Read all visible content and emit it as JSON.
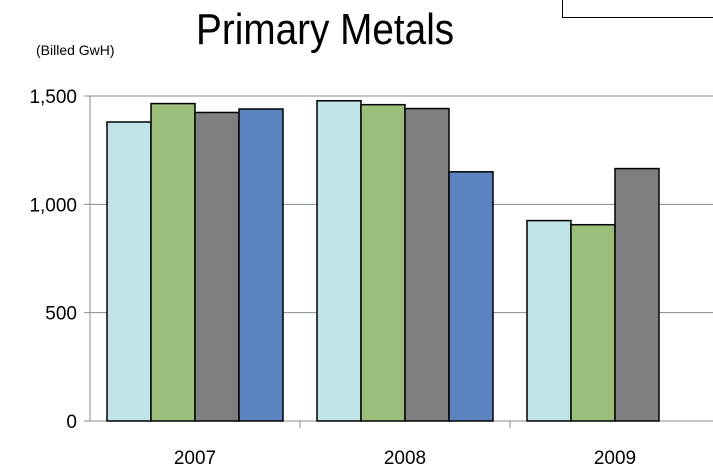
{
  "chart_data": {
    "type": "bar",
    "title": "Primary Metals",
    "ylabel": "(Billed GwH)",
    "xlabel": "",
    "categories": [
      "2007",
      "2008",
      "2009"
    ],
    "yticks": [
      "0",
      "500",
      "1,000",
      "1,500"
    ],
    "ylim": [
      0,
      1500
    ],
    "grid": true,
    "legend": "top-right",
    "series": [
      {
        "color": "#bfe3e6",
        "values": [
          1380,
          1478,
          925
        ]
      },
      {
        "color": "#9bbf7b",
        "values": [
          1465,
          1460,
          906
        ]
      },
      {
        "color": "#7f7f7f",
        "values": [
          1424,
          1442,
          1165
        ]
      },
      {
        "color": "#5b83bf",
        "values": [
          1440,
          1150,
          null
        ]
      }
    ]
  }
}
